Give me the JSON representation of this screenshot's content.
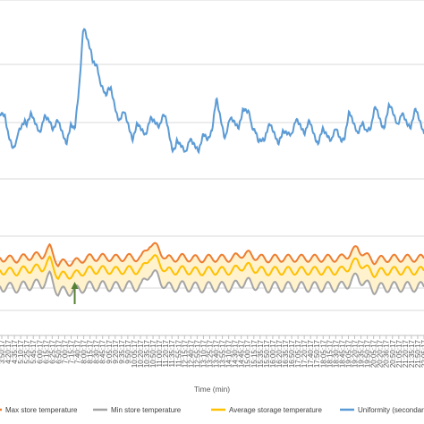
{
  "chart_data": {
    "type": "line",
    "xlabel": "Time (min)",
    "x": [
      "3:50:17",
      "4:20:17",
      "4:35:17",
      "5:10:17",
      "5:25:17",
      "5:45:17",
      "6:00:17",
      "6:15:17",
      "6:25:17",
      "6:50:17",
      "7:00:17",
      "7:15:17",
      "7:40:17",
      "8:00:17",
      "8:15:17",
      "8:30:17",
      "8:45:17",
      "9:05:17",
      "9:20:17",
      "9:35:17",
      "9:50:17",
      "10:05:17",
      "10:20:17",
      "10:35:17",
      "10:50:17",
      "11:00:17",
      "11:20:17",
      "11:35:17",
      "11:55:17",
      "12:15:17",
      "12:40:17",
      "12:55:17",
      "13:10:17",
      "13:25:17",
      "13:40:17",
      "13:55:17",
      "14:10:17",
      "14:30:17",
      "14:45:17",
      "15:00:17",
      "15:15:17",
      "15:35:17",
      "15:50:17",
      "16:00:17",
      "16:20:17",
      "16:35:17",
      "16:50:17",
      "17:05:17",
      "17:20:17",
      "17:40:17",
      "17:50:17",
      "18:05:17",
      "18:15:17",
      "18:30:17",
      "18:45:17",
      "19:05:17",
      "19:20:17",
      "19:35:17",
      "19:50:17",
      "20:05:17",
      "20:20:17",
      "20:36:17",
      "20:50:17",
      "21:05:17",
      "21:20:17",
      "21:35:17",
      "21:50:17",
      "22:05:17"
    ],
    "legend": [
      "Max store temperature",
      "Min store temperature",
      "Average storage temperature",
      "Uniformity (secondary axis)"
    ],
    "legend_position": "bottom",
    "grid": true,
    "colors": {
      "max": "#ED7D31",
      "min": "#A5A5A5",
      "avg": "#FFC000",
      "band": "#FFF2CC",
      "uniformity": "#5B9BD5",
      "marker": "#548235",
      "grid": "#D9D9D9",
      "tick_text": "#595959"
    },
    "series_trend": {
      "uniformity": [
        0.48,
        0.3,
        0.25,
        0.42,
        0.38,
        0.36,
        0.4,
        0.35,
        0.3,
        0.34,
        0.9,
        0.82,
        0.6,
        0.58,
        0.45,
        0.4,
        0.32,
        0.34,
        0.36,
        0.4,
        0.38,
        0.22,
        0.25,
        0.24,
        0.26,
        0.28,
        0.48,
        0.33,
        0.38,
        0.4,
        0.46,
        0.24,
        0.34,
        0.32,
        0.28,
        0.35,
        0.36,
        0.36,
        0.3,
        0.3,
        0.32,
        0.28,
        0.4,
        0.36,
        0.32,
        0.44,
        0.38,
        0.45,
        0.4,
        0.38,
        0.42,
        0.36
      ],
      "max": [
        0.18,
        0.16,
        0.16,
        0.18,
        0.2,
        0.2,
        0.3,
        0.1,
        0.12,
        0.12,
        0.16,
        0.18,
        0.18,
        0.18,
        0.17,
        0.18,
        0.18,
        0.17,
        0.35,
        0.3,
        0.16,
        0.17,
        0.18,
        0.17,
        0.16,
        0.17,
        0.17,
        0.17,
        0.17,
        0.22,
        0.22,
        0.18,
        0.16,
        0.17,
        0.17,
        0.17,
        0.17,
        0.17,
        0.17,
        0.17,
        0.17,
        0.17,
        0.22,
        0.3,
        0.2,
        0.14,
        0.16,
        0.17,
        0.17,
        0.17,
        0.17,
        0.17
      ]
    },
    "marker_arrow_x": "7:40:17"
  }
}
